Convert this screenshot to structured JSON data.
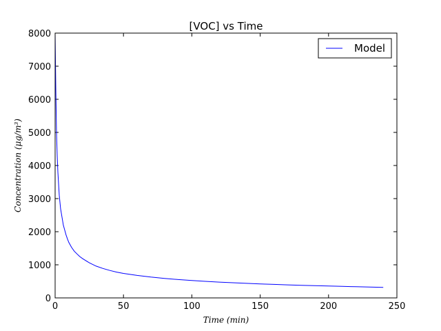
{
  "chart_data": {
    "type": "line",
    "title": "[VOC] vs Time",
    "xlabel": "Time (min)",
    "ylabel": "Concentration (μg/m³)",
    "xlim": [
      0,
      250
    ],
    "ylim": [
      0,
      8000
    ],
    "xticks": [
      "0",
      "50",
      "100",
      "150",
      "200",
      "250"
    ],
    "yticks": [
      "0",
      "1000",
      "2000",
      "3000",
      "4000",
      "5000",
      "6000",
      "7000",
      "8000"
    ],
    "grid": false,
    "legend_position": "top-right",
    "series": [
      {
        "name": "Model",
        "color": "#0000ff",
        "x": [
          0,
          0.5,
          1,
          1.5,
          2,
          3,
          4,
          5,
          6,
          7,
          8,
          9,
          10,
          12,
          14,
          16,
          18,
          20,
          25,
          30,
          35,
          40,
          45,
          50,
          60,
          70,
          80,
          90,
          100,
          110,
          120,
          130,
          140,
          150,
          160,
          170,
          180,
          190,
          200,
          210,
          220,
          230,
          240
        ],
        "y": [
          8000,
          6300,
          5000,
          4300,
          3800,
          3100,
          2700,
          2450,
          2200,
          2050,
          1900,
          1780,
          1680,
          1530,
          1410,
          1330,
          1250,
          1190,
          1060,
          960,
          890,
          830,
          780,
          740,
          680,
          630,
          590,
          555,
          525,
          500,
          478,
          458,
          440,
          423,
          408,
          394,
          381,
          370,
          358,
          347,
          337,
          327,
          318
        ]
      }
    ]
  }
}
